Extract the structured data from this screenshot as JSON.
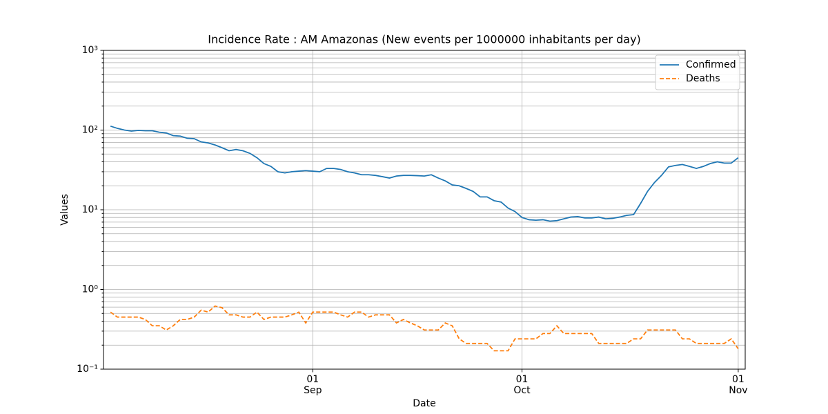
{
  "chart_data": {
    "type": "line",
    "title": "Incidence Rate : AM Amazonas (New events per 1000000 inhabitants per day)",
    "xlabel": "Date",
    "ylabel": "Values",
    "yscale": "log",
    "grid": "both",
    "legend": "upper right",
    "xlim": [
      "08-02",
      "11-02"
    ],
    "xticks": [
      {
        "value": "09-01",
        "label": [
          "01",
          "Sep"
        ]
      },
      {
        "value": "10-01",
        "label": [
          "01",
          "Oct"
        ]
      },
      {
        "value": "11-01",
        "label": [
          "01",
          "Nov"
        ]
      }
    ],
    "ylim": [
      0.1,
      1000
    ],
    "yticks": [
      {
        "value": 0.1,
        "label": "10⁻¹"
      },
      {
        "value": 1,
        "label": "10⁰"
      },
      {
        "value": 10,
        "label": "10¹"
      },
      {
        "value": 100,
        "label": "10²"
      },
      {
        "value": 1000,
        "label": "10³"
      }
    ],
    "x": [
      "08-03",
      "08-04",
      "08-05",
      "08-06",
      "08-07",
      "08-08",
      "08-09",
      "08-10",
      "08-11",
      "08-12",
      "08-13",
      "08-14",
      "08-15",
      "08-16",
      "08-17",
      "08-18",
      "08-19",
      "08-20",
      "08-21",
      "08-22",
      "08-23",
      "08-24",
      "08-25",
      "08-26",
      "08-27",
      "08-28",
      "08-29",
      "08-30",
      "08-31",
      "09-01",
      "09-02",
      "09-03",
      "09-04",
      "09-05",
      "09-06",
      "09-07",
      "09-08",
      "09-09",
      "09-10",
      "09-11",
      "09-12",
      "09-13",
      "09-14",
      "09-15",
      "09-16",
      "09-17",
      "09-18",
      "09-19",
      "09-20",
      "09-21",
      "09-22",
      "09-23",
      "09-24",
      "09-25",
      "09-26",
      "09-27",
      "09-28",
      "09-29",
      "09-30",
      "10-01",
      "10-02",
      "10-03",
      "10-04",
      "10-05",
      "10-06",
      "10-07",
      "10-08",
      "10-09",
      "10-10",
      "10-11",
      "10-12",
      "10-13",
      "10-14",
      "10-15",
      "10-16",
      "10-17",
      "10-18",
      "10-19",
      "10-20",
      "10-21",
      "10-22",
      "10-23",
      "10-24",
      "10-25",
      "10-26",
      "10-27",
      "10-28",
      "10-29",
      "10-30",
      "10-31",
      "11-01"
    ],
    "series": [
      {
        "name": "Confirmed",
        "color": "#1f77b4",
        "dash": "solid",
        "values": [
          112,
          105,
          100,
          97,
          99,
          98,
          98,
          94,
          92,
          85,
          84,
          79,
          78,
          71,
          69,
          65,
          60,
          55,
          57,
          55,
          51,
          45,
          38,
          35,
          30,
          29,
          30,
          30.5,
          31,
          30.5,
          30,
          33,
          33,
          32,
          30,
          29,
          27.5,
          27.5,
          27,
          26,
          25,
          26.5,
          27,
          27,
          26.8,
          26.5,
          27.5,
          25,
          23,
          20.5,
          20,
          18.5,
          17,
          14.5,
          14.5,
          13,
          12.5,
          10.5,
          9.5,
          8,
          7.5,
          7.4,
          7.5,
          7.2,
          7.3,
          7.7,
          8.1,
          8.2,
          7.9,
          7.9,
          8.1,
          7.7,
          7.8,
          8.1,
          8.5,
          8.7,
          12,
          17,
          22,
          27,
          34.5,
          36,
          37,
          35,
          33,
          35,
          38,
          40,
          38.5,
          38.5,
          45
        ]
      },
      {
        "name": "Deaths",
        "color": "#ff7f0e",
        "dash": "dashed",
        "values": [
          0.52,
          0.45,
          0.45,
          0.45,
          0.45,
          0.42,
          0.35,
          0.35,
          0.31,
          0.35,
          0.42,
          0.42,
          0.45,
          0.55,
          0.52,
          0.62,
          0.59,
          0.48,
          0.48,
          0.45,
          0.45,
          0.52,
          0.42,
          0.45,
          0.45,
          0.45,
          0.48,
          0.52,
          0.38,
          0.52,
          0.52,
          0.52,
          0.52,
          0.48,
          0.45,
          0.52,
          0.52,
          0.45,
          0.48,
          0.48,
          0.48,
          0.38,
          0.42,
          0.38,
          0.35,
          0.31,
          0.31,
          0.31,
          0.38,
          0.35,
          0.24,
          0.21,
          0.21,
          0.21,
          0.21,
          0.17,
          0.17,
          0.17,
          0.24,
          0.24,
          0.24,
          0.24,
          0.28,
          0.28,
          0.35,
          0.28,
          0.28,
          0.28,
          0.28,
          0.28,
          0.21,
          0.21,
          0.21,
          0.21,
          0.21,
          0.24,
          0.24,
          0.31,
          0.31,
          0.31,
          0.31,
          0.31,
          0.24,
          0.24,
          0.21,
          0.21,
          0.21,
          0.21,
          0.21,
          0.24,
          0.18
        ]
      }
    ]
  }
}
